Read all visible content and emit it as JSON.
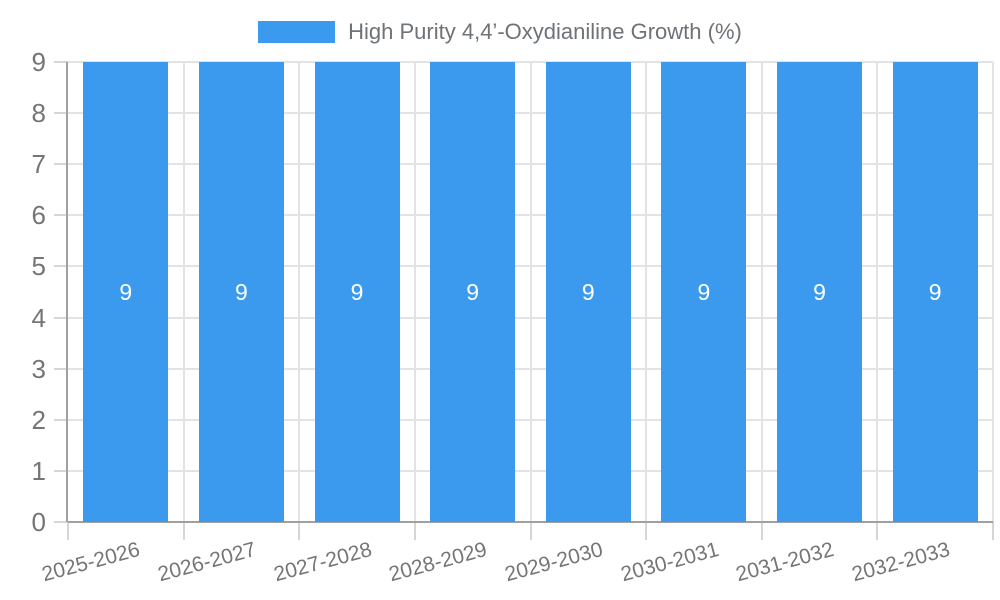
{
  "chart_data": {
    "type": "bar",
    "title": "High Purity 4,4’-Oxydianiline Growth (%)",
    "categories": [
      "2025-2026",
      "2026-2027",
      "2027-2028",
      "2028-2029",
      "2029-2030",
      "2030-2031",
      "2031-2032",
      "2032-2033"
    ],
    "values": [
      9,
      9,
      9,
      9,
      9,
      9,
      9,
      9
    ],
    "xlabel": "",
    "ylabel": "",
    "ylim": [
      0,
      9
    ],
    "yticks": [
      0,
      1,
      2,
      3,
      4,
      5,
      6,
      7,
      8,
      9
    ],
    "grid": true,
    "bar_labels_shown": true,
    "legend": [
      "High Purity 4,4’-Oxydianiline Growth (%)"
    ],
    "legend_position": "top-center",
    "x_tick_rotation_deg": -15,
    "colors": {
      "bar": "#3B99EE",
      "bar_label": "#FFFFFF",
      "grid": "#E3E3E3",
      "axis_line": "#A0A0A0",
      "tick_mark": "#D6D6D6",
      "tick_label": "#757575",
      "legend_text": "#6E7377"
    }
  }
}
